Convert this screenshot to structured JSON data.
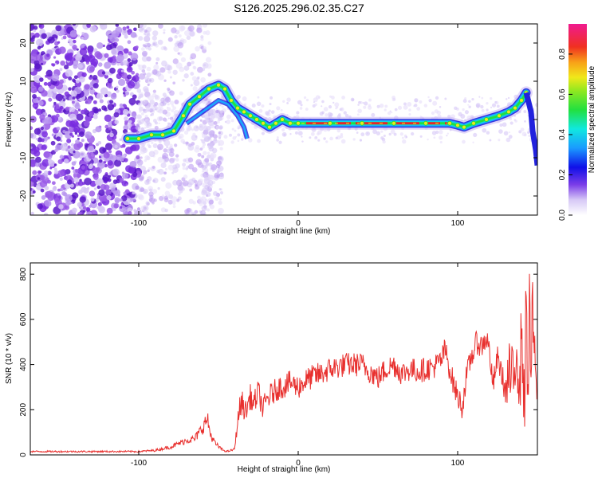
{
  "title": "S126.2025.296.02.35.C27",
  "colors": {
    "snr_line": "#e8302e",
    "ridge_core": "#e8242a",
    "ridge_mid": "#22dd44",
    "ridge_edge": "#1aa8ff",
    "ridge_outer": "#2222dd",
    "noise_dark": "#6a1fd6",
    "noise_light": "#d8c4f8"
  },
  "chart_data": [
    {
      "type": "heatmap",
      "name": "spectrogram",
      "xlabel": "Height of straight line (km)",
      "ylabel": "Frequency (Hz)",
      "xlim": [
        -168,
        150
      ],
      "ylim": [
        -25,
        25
      ],
      "xticks": [
        -100,
        0,
        100
      ],
      "xtick_labels": [
        "-100",
        "0",
        "100"
      ],
      "yticks": [
        -20,
        -10,
        0,
        10,
        20
      ],
      "ytick_labels": [
        "-20",
        "-10",
        "0",
        "10",
        "20"
      ],
      "ridge_frequency": {
        "x": [
          -107,
          -100,
          -92,
          -85,
          -78,
          -72,
          -68,
          -62,
          -56,
          -50,
          -46,
          -42,
          -38,
          -34,
          -30,
          -26,
          -22,
          -18,
          -14,
          -10,
          -5,
          0,
          20,
          40,
          60,
          80,
          95,
          100,
          104,
          110,
          118,
          126,
          132,
          136,
          140,
          143
        ],
        "y": [
          -5,
          -5,
          -4,
          -4,
          -3,
          1,
          4,
          6,
          8,
          9,
          8,
          5,
          3,
          2,
          1,
          0,
          -1,
          -2,
          -1,
          0,
          -1,
          -1,
          -1,
          -1,
          -1,
          -1,
          -1,
          -1.5,
          -2,
          -1,
          0,
          1,
          2,
          3,
          5,
          7
        ]
      }
    },
    {
      "type": "colorbar",
      "name": "spectral-amplitude-colorbar",
      "label": "Normalized spectral amplitude",
      "range": [
        0,
        0.95
      ],
      "ticks": [
        0,
        0.2,
        0.4,
        0.6,
        0.8
      ],
      "tick_labels": [
        "0.0",
        "0.2",
        "0.4",
        "0.6",
        "0.8"
      ]
    },
    {
      "type": "line",
      "name": "snr",
      "xlabel": "Height of straight line (km)",
      "ylabel": "SNR (10 * v/v)",
      "xlim": [
        -168,
        150
      ],
      "ylim": [
        0,
        850
      ],
      "xticks": [
        -100,
        0,
        100
      ],
      "xtick_labels": [
        "-100",
        "0",
        "100"
      ],
      "yticks": [
        0,
        200,
        400,
        600,
        800
      ],
      "ytick_labels": [
        "0",
        "200",
        "400",
        "600",
        "800"
      ],
      "x": [
        -168,
        -150,
        -130,
        -110,
        -100,
        -90,
        -80,
        -75,
        -70,
        -65,
        -60,
        -57,
        -55,
        -52,
        -48,
        -45,
        -42,
        -40,
        -37,
        -35,
        -33,
        -30,
        -28,
        -25,
        -22,
        -20,
        -18,
        -15,
        -12,
        -10,
        -5,
        0,
        5,
        10,
        15,
        20,
        25,
        30,
        35,
        40,
        45,
        50,
        55,
        60,
        65,
        70,
        75,
        80,
        85,
        90,
        92,
        95,
        98,
        100,
        103,
        105,
        108,
        110,
        112,
        115,
        118,
        120,
        122,
        125,
        128,
        130,
        133,
        135,
        137,
        139,
        140,
        141,
        142,
        143,
        144,
        145,
        146,
        147,
        148,
        149,
        150
      ],
      "y": [
        15,
        15,
        15,
        15,
        15,
        20,
        35,
        50,
        65,
        70,
        120,
        160,
        90,
        50,
        25,
        15,
        20,
        25,
        200,
        230,
        190,
        260,
        220,
        280,
        200,
        240,
        260,
        280,
        300,
        300,
        320,
        300,
        330,
        350,
        360,
        380,
        390,
        400,
        400,
        400,
        370,
        340,
        380,
        400,
        360,
        380,
        370,
        380,
        390,
        420,
        470,
        380,
        300,
        260,
        210,
        330,
        420,
        460,
        500,
        480,
        520,
        460,
        300,
        430,
        350,
        270,
        360,
        300,
        520,
        250,
        600,
        380,
        150,
        840,
        200,
        650,
        350,
        650,
        450,
        280,
        400
      ],
      "y_lower_for_noise_from_x": -37,
      "y_noise_amplitude": 180
    }
  ]
}
